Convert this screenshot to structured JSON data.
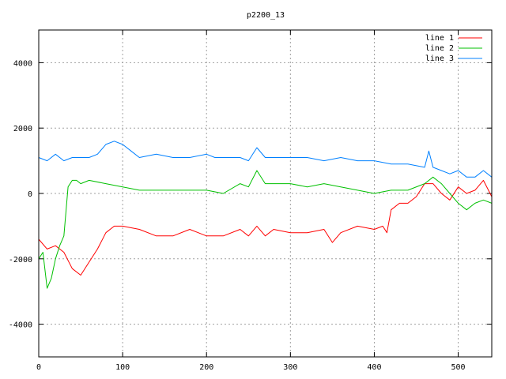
{
  "chart_data": {
    "type": "line",
    "title": "p2200_13",
    "xlabel": "",
    "ylabel": "",
    "xlim": [
      0,
      540
    ],
    "ylim": [
      -5000,
      5000
    ],
    "x_ticks": [
      "0",
      "100",
      "200",
      "300",
      "400",
      "500"
    ],
    "y_ticks": [
      "-4000",
      "-2000",
      "0",
      "2000",
      "4000"
    ],
    "grid": true,
    "legend_position": "top-right",
    "series": [
      {
        "name": "line 1",
        "color": "#ff0000",
        "x": [
          0,
          10,
          20,
          30,
          40,
          50,
          60,
          70,
          80,
          90,
          100,
          120,
          140,
          160,
          180,
          200,
          220,
          240,
          250,
          260,
          270,
          280,
          300,
          320,
          340,
          350,
          360,
          380,
          400,
          410,
          415,
          420,
          430,
          440,
          450,
          460,
          470,
          480,
          490,
          500,
          510,
          520,
          530,
          540
        ],
        "y": [
          -1400,
          -1700,
          -1600,
          -1800,
          -2300,
          -2500,
          -2100,
          -1700,
          -1200,
          -1000,
          -1000,
          -1100,
          -1300,
          -1300,
          -1100,
          -1300,
          -1300,
          -1100,
          -1300,
          -1000,
          -1300,
          -1100,
          -1200,
          -1200,
          -1100,
          -1500,
          -1200,
          -1000,
          -1100,
          -1000,
          -1200,
          -500,
          -300,
          -300,
          -100,
          300,
          300,
          0,
          -200,
          200,
          0,
          100,
          400,
          -100
        ]
      },
      {
        "name": "line 2",
        "color": "#00c000",
        "x": [
          0,
          5,
          10,
          15,
          20,
          25,
          30,
          35,
          40,
          45,
          50,
          60,
          80,
          100,
          120,
          140,
          160,
          180,
          200,
          220,
          240,
          250,
          260,
          270,
          280,
          300,
          320,
          340,
          360,
          380,
          400,
          420,
          440,
          460,
          470,
          480,
          490,
          500,
          510,
          520,
          530,
          540
        ],
        "y": [
          -2000,
          -1800,
          -2900,
          -2600,
          -2000,
          -1600,
          -1300,
          200,
          400,
          400,
          300,
          400,
          300,
          200,
          100,
          100,
          100,
          100,
          100,
          0,
          300,
          200,
          700,
          300,
          300,
          300,
          200,
          300,
          200,
          100,
          0,
          100,
          100,
          300,
          500,
          300,
          0,
          -300,
          -500,
          -300,
          -200,
          -300
        ]
      },
      {
        "name": "line 3",
        "color": "#0080ff",
        "x": [
          0,
          10,
          20,
          30,
          40,
          50,
          60,
          70,
          80,
          90,
          100,
          110,
          120,
          140,
          160,
          180,
          200,
          210,
          220,
          240,
          250,
          260,
          270,
          280,
          300,
          320,
          340,
          360,
          380,
          400,
          420,
          440,
          460,
          465,
          470,
          480,
          490,
          500,
          510,
          520,
          530,
          540
        ],
        "y": [
          1100,
          1000,
          1200,
          1000,
          1100,
          1100,
          1100,
          1200,
          1500,
          1600,
          1500,
          1300,
          1100,
          1200,
          1100,
          1100,
          1200,
          1100,
          1100,
          1100,
          1000,
          1400,
          1100,
          1100,
          1100,
          1100,
          1000,
          1100,
          1000,
          1000,
          900,
          900,
          800,
          1300,
          800,
          700,
          600,
          700,
          500,
          500,
          700,
          500
        ]
      }
    ]
  }
}
